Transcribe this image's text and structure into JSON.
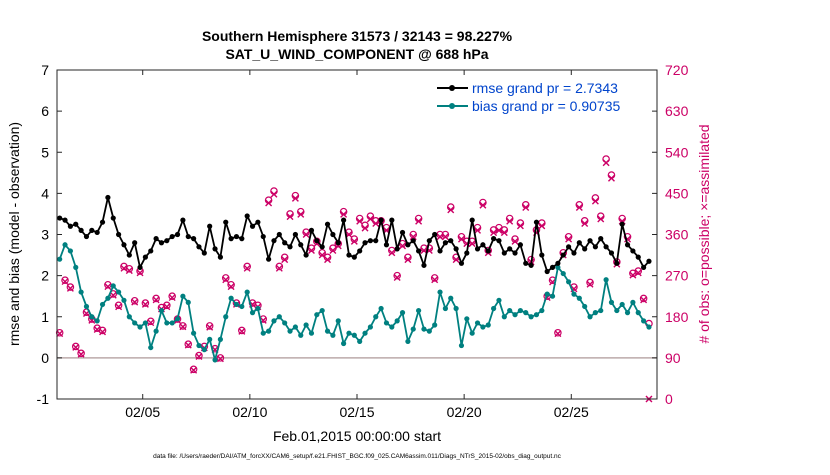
{
  "chart_data": {
    "type": "line",
    "title": "Southern Hemisphere 31573 / 32143 = 98.227%",
    "subtitle": "SAT_U_WIND_COMPONENT @ 688 hPa",
    "xlabel": "Feb.01,2015 00:00:00 start",
    "ylabel": "rmse and bias (model - observation)",
    "y2label": "# of obs: o=possible; ×=assimilated",
    "footer": "data file: /Users/raeder/DAI/ATM_forcXX/CAM6_setup/f.e21.FHIST_BGC.f09_025.CAM6assim.011/Diags_NTrS_2015-02/obs_diag_output.nc",
    "xlim": [
      1.0,
      29.0
    ],
    "ylim": [
      -1,
      7
    ],
    "y2lim": [
      0,
      720
    ],
    "x_ticks": [
      5,
      10,
      15,
      20,
      25
    ],
    "x_tick_labels": [
      "02/05",
      "02/10",
      "02/15",
      "02/20",
      "02/25"
    ],
    "y_ticks": [
      -1,
      0,
      1,
      2,
      3,
      4,
      5,
      6,
      7
    ],
    "y2_ticks": [
      0,
      90,
      180,
      270,
      360,
      450,
      540,
      630,
      720
    ],
    "colors": {
      "rmse": "#000000",
      "bias": "#008080",
      "obs": "#cc0066",
      "zero": "#bbaaaa",
      "legend_text": "#0044cc"
    },
    "legend": [
      {
        "name": "rmse grand pr = 2.7343",
        "series": "rmse"
      },
      {
        "name": "bias grand pr = 0.90735",
        "series": "bias"
      }
    ],
    "legend_position": "top-right",
    "series": [
      {
        "name": "rmse",
        "x": [
          1.125,
          1.375,
          1.625,
          1.875,
          2.125,
          2.375,
          2.625,
          2.875,
          3.125,
          3.375,
          3.625,
          3.875,
          4.125,
          4.375,
          4.625,
          4.875,
          5.125,
          5.375,
          5.625,
          5.875,
          6.125,
          6.375,
          6.625,
          6.875,
          7.125,
          7.375,
          7.625,
          7.875,
          8.125,
          8.375,
          8.625,
          8.875,
          9.125,
          9.375,
          9.625,
          9.875,
          10.125,
          10.375,
          10.625,
          10.875,
          11.125,
          11.375,
          11.625,
          11.875,
          12.125,
          12.375,
          12.625,
          12.875,
          13.125,
          13.375,
          13.625,
          13.875,
          14.125,
          14.375,
          14.625,
          14.875,
          15.125,
          15.375,
          15.625,
          15.875,
          16.125,
          16.375,
          16.625,
          16.875,
          17.125,
          17.375,
          17.625,
          17.875,
          18.125,
          18.375,
          18.625,
          18.875,
          19.125,
          19.375,
          19.625,
          19.875,
          20.125,
          20.375,
          20.625,
          20.875,
          21.125,
          21.375,
          21.625,
          21.875,
          22.125,
          22.375,
          22.625,
          22.875,
          23.125,
          23.375,
          23.625,
          23.875,
          24.125,
          24.375,
          24.625,
          24.875,
          25.125,
          25.375,
          25.625,
          25.875,
          26.125,
          26.375,
          26.625,
          26.875,
          27.125,
          27.375,
          27.625,
          27.875,
          28.125,
          28.375,
          28.625
        ],
        "values": [
          3.4,
          3.35,
          3.2,
          3.25,
          3.1,
          2.95,
          3.1,
          3.05,
          3.3,
          3.9,
          3.4,
          3.0,
          2.75,
          2.5,
          2.8,
          2.2,
          2.45,
          2.6,
          2.9,
          2.8,
          2.85,
          2.95,
          3.0,
          3.35,
          2.95,
          2.9,
          2.7,
          2.55,
          3.2,
          2.65,
          2.45,
          3.3,
          2.9,
          2.95,
          2.9,
          3.45,
          3.2,
          3.3,
          2.95,
          2.4,
          2.85,
          3.0,
          2.8,
          2.7,
          3.0,
          2.75,
          2.5,
          3.1,
          2.85,
          2.7,
          3.25,
          3.0,
          2.8,
          3.35,
          2.5,
          2.45,
          2.6,
          2.8,
          2.85,
          2.85,
          3.35,
          2.75,
          3.35,
          2.65,
          3.05,
          2.75,
          2.85,
          2.6,
          2.25,
          2.85,
          3.0,
          2.6,
          2.8,
          2.85,
          2.65,
          2.3,
          2.55,
          3.35,
          2.65,
          2.75,
          2.6,
          2.9,
          2.85,
          2.55,
          2.65,
          2.55,
          2.75,
          2.3,
          2.25,
          3.3,
          2.5,
          2.1,
          2.2,
          2.3,
          2.5,
          2.7,
          2.55,
          2.8,
          2.65,
          2.85,
          2.7,
          2.9,
          2.7,
          2.55,
          2.3,
          3.25,
          2.75,
          2.6,
          2.45,
          2.2,
          2.35
        ]
      },
      {
        "name": "bias",
        "x": [
          1.125,
          1.375,
          1.625,
          1.875,
          2.125,
          2.375,
          2.625,
          2.875,
          3.125,
          3.375,
          3.625,
          3.875,
          4.125,
          4.375,
          4.625,
          4.875,
          5.125,
          5.375,
          5.625,
          5.875,
          6.125,
          6.375,
          6.625,
          6.875,
          7.125,
          7.375,
          7.625,
          7.875,
          8.125,
          8.375,
          8.625,
          8.875,
          9.125,
          9.375,
          9.625,
          9.875,
          10.125,
          10.375,
          10.625,
          10.875,
          11.125,
          11.375,
          11.625,
          11.875,
          12.125,
          12.375,
          12.625,
          12.875,
          13.125,
          13.375,
          13.625,
          13.875,
          14.125,
          14.375,
          14.625,
          14.875,
          15.125,
          15.375,
          15.625,
          15.875,
          16.125,
          16.375,
          16.625,
          16.875,
          17.125,
          17.375,
          17.625,
          17.875,
          18.125,
          18.375,
          18.625,
          18.875,
          19.125,
          19.375,
          19.625,
          19.875,
          20.125,
          20.375,
          20.625,
          20.875,
          21.125,
          21.375,
          21.625,
          21.875,
          22.125,
          22.375,
          22.625,
          22.875,
          23.125,
          23.375,
          23.625,
          23.875,
          24.125,
          24.375,
          24.625,
          24.875,
          25.125,
          25.375,
          25.625,
          25.875,
          26.125,
          26.375,
          26.625,
          26.875,
          27.125,
          27.375,
          27.625,
          27.875,
          28.125,
          28.375,
          28.625
        ],
        "values": [
          2.4,
          2.75,
          2.6,
          2.2,
          1.6,
          1.25,
          1.0,
          0.9,
          1.3,
          1.45,
          1.75,
          1.6,
          1.4,
          1.0,
          0.85,
          0.75,
          0.85,
          0.25,
          0.65,
          1.15,
          0.85,
          0.85,
          0.95,
          1.5,
          1.35,
          0.6,
          0.3,
          0.2,
          0.45,
          -0.05,
          0.45,
          1.0,
          1.45,
          1.3,
          1.25,
          1.6,
          1.1,
          1.2,
          0.6,
          0.65,
          0.9,
          1.0,
          0.85,
          0.65,
          0.75,
          0.55,
          0.8,
          0.6,
          1.05,
          1.15,
          0.65,
          0.55,
          0.9,
          0.35,
          0.6,
          0.55,
          0.4,
          0.6,
          0.75,
          1.0,
          1.2,
          0.85,
          0.75,
          0.9,
          1.1,
          0.4,
          0.7,
          1.15,
          0.7,
          0.65,
          0.8,
          1.6,
          1.2,
          1.45,
          1.2,
          0.3,
          0.95,
          0.6,
          0.85,
          0.75,
          0.8,
          1.2,
          1.4,
          1.0,
          1.15,
          1.05,
          1.15,
          1.1,
          1.0,
          1.05,
          1.15,
          1.55,
          1.5,
          2.2,
          2.05,
          1.85,
          1.55,
          1.45,
          1.25,
          1.0,
          1.1,
          1.15,
          1.9,
          1.35,
          1.15,
          1.3,
          1.1,
          1.35,
          1.1,
          0.9,
          0.75
        ]
      },
      {
        "name": "obs_possible",
        "axis": "y2",
        "x": [
          1.125,
          1.375,
          1.625,
          1.875,
          2.125,
          2.375,
          2.625,
          2.875,
          3.125,
          3.375,
          3.625,
          3.875,
          4.125,
          4.375,
          4.625,
          4.875,
          5.125,
          5.375,
          5.625,
          5.875,
          6.125,
          6.375,
          6.625,
          6.875,
          7.125,
          7.375,
          7.625,
          7.875,
          8.125,
          8.375,
          8.625,
          8.875,
          9.125,
          9.375,
          9.625,
          9.875,
          10.125,
          10.375,
          10.625,
          10.875,
          11.125,
          11.375,
          11.625,
          11.875,
          12.125,
          12.375,
          12.625,
          12.875,
          13.125,
          13.375,
          13.625,
          13.875,
          14.125,
          14.375,
          14.625,
          14.875,
          15.125,
          15.375,
          15.625,
          15.875,
          16.125,
          16.375,
          16.625,
          16.875,
          17.125,
          17.375,
          17.625,
          17.875,
          18.125,
          18.375,
          18.625,
          18.875,
          19.125,
          19.375,
          19.625,
          19.875,
          20.125,
          20.375,
          20.625,
          20.875,
          21.125,
          21.375,
          21.625,
          21.875,
          22.125,
          22.375,
          22.625,
          22.875,
          23.125,
          23.375,
          23.625,
          23.875,
          24.125,
          24.375,
          24.625,
          24.875,
          25.125,
          25.375,
          25.625,
          25.875,
          26.125,
          26.375,
          26.625,
          26.875,
          27.125,
          27.375,
          27.625,
          27.875,
          28.125,
          28.375,
          28.625
        ],
        "values": [
          145,
          260,
          245,
          115,
          100,
          190,
          175,
          155,
          150,
          250,
          230,
          205,
          290,
          285,
          215,
          280,
          210,
          170,
          220,
          200,
          205,
          225,
          175,
          160,
          120,
          65,
          95,
          115,
          160,
          110,
          90,
          265,
          250,
          210,
          150,
          290,
          210,
          205,
          175,
          435,
          455,
          290,
          310,
          405,
          445,
          410,
          365,
          330,
          345,
          320,
          310,
          330,
          340,
          410,
          365,
          350,
          395,
          380,
          400,
          390,
          390,
          375,
          325,
          270,
          340,
          310,
          360,
          395,
          330,
          330,
          265,
          360,
          360,
          420,
          310,
          355,
          345,
          345,
          375,
          430,
          325,
          370,
          375,
          370,
          395,
          350,
          385,
          425,
          305,
          370,
          385,
          225,
          260,
          145,
          320,
          355,
          245,
          425,
          390,
          255,
          440,
          400,
          525,
          490,
          300,
          395,
          355,
          275,
          280,
          220,
          165
        ]
      },
      {
        "name": "obs_assimilated",
        "axis": "y2",
        "x": [
          1.125,
          1.375,
          1.625,
          1.875,
          2.125,
          2.375,
          2.625,
          2.875,
          3.125,
          3.375,
          3.625,
          3.875,
          4.125,
          4.375,
          4.625,
          4.875,
          5.125,
          5.375,
          5.625,
          5.875,
          6.125,
          6.375,
          6.625,
          6.875,
          7.125,
          7.375,
          7.625,
          7.875,
          8.125,
          8.375,
          8.625,
          8.875,
          9.125,
          9.375,
          9.625,
          9.875,
          10.125,
          10.375,
          10.625,
          10.875,
          11.125,
          11.375,
          11.625,
          11.875,
          12.125,
          12.375,
          12.625,
          12.875,
          13.125,
          13.375,
          13.625,
          13.875,
          14.125,
          14.375,
          14.625,
          14.875,
          15.125,
          15.375,
          15.625,
          15.875,
          16.125,
          16.375,
          16.625,
          16.875,
          17.125,
          17.375,
          17.625,
          17.875,
          18.125,
          18.375,
          18.625,
          18.875,
          19.125,
          19.375,
          19.625,
          19.875,
          20.125,
          20.375,
          20.625,
          20.875,
          21.125,
          21.375,
          21.625,
          21.875,
          22.125,
          22.375,
          22.625,
          22.875,
          23.125,
          23.375,
          23.625,
          23.875,
          24.125,
          24.375,
          24.625,
          24.875,
          25.125,
          25.375,
          25.625,
          25.875,
          26.125,
          26.375,
          26.625,
          26.875,
          27.125,
          27.375,
          27.625,
          27.875,
          28.125,
          28.375,
          28.625
        ],
        "values": [
          143,
          257,
          242,
          113,
          98,
          187,
          172,
          152,
          147,
          246,
          227,
          202,
          286,
          281,
          212,
          276,
          207,
          167,
          217,
          197,
          202,
          222,
          172,
          158,
          118,
          63,
          93,
          112,
          157,
          108,
          88,
          261,
          246,
          207,
          148,
          286,
          207,
          202,
          172,
          429,
          448,
          286,
          305,
          399,
          439,
          404,
          360,
          325,
          340,
          315,
          305,
          325,
          335,
          404,
          360,
          345,
          389,
          374,
          394,
          384,
          384,
          369,
          320,
          266,
          335,
          305,
          355,
          389,
          325,
          325,
          261,
          355,
          355,
          414,
          305,
          350,
          340,
          340,
          369,
          424,
          320,
          364,
          369,
          364,
          389,
          345,
          379,
          419,
          300,
          364,
          379,
          222,
          256,
          143,
          315,
          350,
          241,
          419,
          384,
          251,
          433,
          394,
          517,
          483,
          295,
          389,
          350,
          271,
          276,
          217,
          0
        ]
      }
    ]
  }
}
